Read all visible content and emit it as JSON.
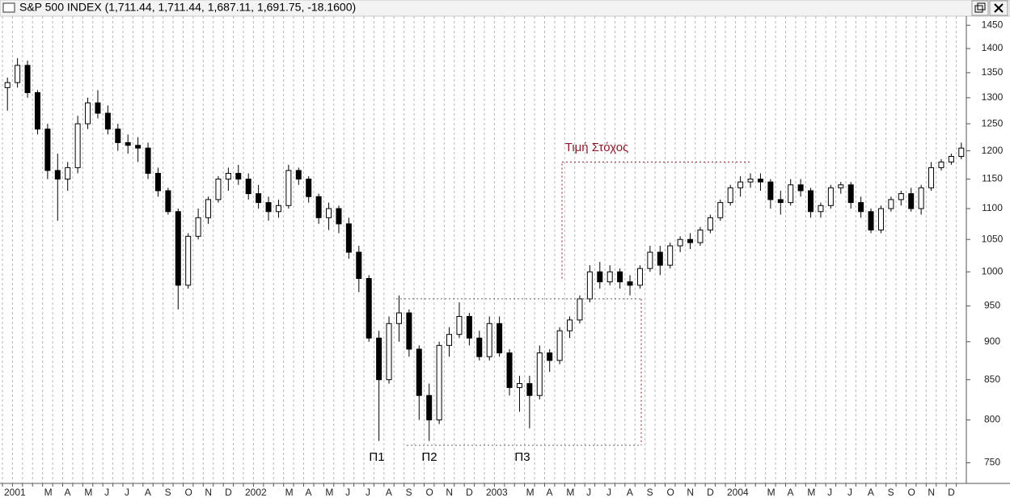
{
  "chart_data": {
    "type": "candlestick",
    "title": "S&P 500 INDEX (1,711.44, 1,711.44, 1,687.11, 1,691.75, -18.1600)",
    "categories": [
      "2001",
      null,
      null,
      null,
      "M",
      null,
      "A",
      null,
      "M",
      null,
      "J",
      null,
      "J",
      null,
      "A",
      null,
      "S",
      null,
      "O",
      null,
      "N",
      null,
      "D",
      null,
      "2002",
      null,
      null,
      null,
      "M",
      null,
      "A",
      null,
      "M",
      null,
      "J",
      null,
      "J",
      null,
      "A",
      null,
      "S",
      null,
      "O",
      null,
      "N",
      null,
      "D",
      null,
      "2003",
      null,
      null,
      null,
      "M",
      null,
      "A",
      null,
      "M",
      null,
      "J",
      null,
      "J",
      null,
      "A",
      null,
      "S",
      null,
      "O",
      null,
      "N",
      null,
      "D",
      null,
      "2004",
      null,
      null,
      null,
      "M",
      null,
      "A",
      null,
      "M",
      null,
      "J",
      null,
      "J",
      null,
      "A",
      null,
      "S",
      null,
      "O",
      null,
      "N",
      null,
      "D",
      null
    ],
    "open": [
      1320,
      1330,
      1365,
      1310,
      1240,
      1165,
      1150,
      1170,
      1250,
      1290,
      1270,
      1240,
      1215,
      1210,
      1205,
      1160,
      1130,
      1095,
      980,
      1055,
      1085,
      1115,
      1150,
      1160,
      1150,
      1125,
      1110,
      1095,
      1105,
      1165,
      1150,
      1120,
      1085,
      1100,
      1075,
      1030,
      990,
      905,
      850,
      925,
      940,
      890,
      830,
      800,
      895,
      910,
      935,
      905,
      880,
      925,
      885,
      840,
      845,
      830,
      885,
      875,
      915,
      930,
      960,
      1000,
      985,
      1000,
      985,
      980,
      1005,
      1030,
      1010,
      1040,
      1050,
      1045,
      1065,
      1085,
      1110,
      1135,
      1145,
      1150,
      1145,
      1115,
      1110,
      1140,
      1130,
      1095,
      1105,
      1135,
      1140,
      1110,
      1095,
      1065,
      1100,
      1115,
      1125,
      1100,
      1135,
      1170,
      1180,
      1190
    ],
    "high": [
      1340,
      1380,
      1375,
      1315,
      1250,
      1195,
      1180,
      1265,
      1300,
      1315,
      1285,
      1250,
      1230,
      1225,
      1215,
      1170,
      1135,
      1100,
      1060,
      1100,
      1120,
      1155,
      1170,
      1175,
      1160,
      1140,
      1120,
      1115,
      1175,
      1170,
      1155,
      1125,
      1110,
      1105,
      1085,
      1040,
      995,
      915,
      935,
      965,
      945,
      895,
      845,
      900,
      920,
      955,
      940,
      915,
      935,
      935,
      890,
      855,
      855,
      895,
      890,
      920,
      935,
      965,
      1010,
      1015,
      1010,
      1005,
      995,
      1010,
      1040,
      1040,
      1045,
      1055,
      1060,
      1070,
      1090,
      1115,
      1140,
      1155,
      1160,
      1160,
      1150,
      1130,
      1150,
      1150,
      1135,
      1110,
      1140,
      1145,
      1145,
      1120,
      1100,
      1105,
      1120,
      1130,
      1135,
      1140,
      1180,
      1185,
      1195,
      1215
    ],
    "low": [
      1275,
      1320,
      1300,
      1230,
      1150,
      1080,
      1130,
      1160,
      1240,
      1260,
      1230,
      1200,
      1195,
      1180,
      1150,
      1120,
      1090,
      945,
      975,
      1050,
      1075,
      1110,
      1130,
      1140,
      1115,
      1100,
      1080,
      1085,
      1100,
      1140,
      1110,
      1075,
      1065,
      1060,
      1020,
      970,
      900,
      775,
      845,
      900,
      880,
      800,
      775,
      795,
      880,
      905,
      895,
      875,
      875,
      880,
      830,
      810,
      790,
      825,
      860,
      870,
      905,
      925,
      955,
      975,
      980,
      975,
      965,
      975,
      1000,
      995,
      1005,
      1030,
      1035,
      1040,
      1060,
      1080,
      1105,
      1120,
      1135,
      1130,
      1100,
      1090,
      1105,
      1120,
      1085,
      1085,
      1100,
      1125,
      1100,
      1085,
      1060,
      1060,
      1095,
      1105,
      1095,
      1090,
      1130,
      1165,
      1175,
      1185
    ],
    "close": [
      1330,
      1365,
      1310,
      1240,
      1165,
      1150,
      1170,
      1250,
      1290,
      1270,
      1240,
      1215,
      1210,
      1205,
      1160,
      1130,
      1095,
      980,
      1055,
      1085,
      1115,
      1150,
      1160,
      1150,
      1125,
      1110,
      1095,
      1105,
      1165,
      1150,
      1120,
      1085,
      1100,
      1075,
      1030,
      990,
      905,
      850,
      925,
      940,
      890,
      830,
      800,
      895,
      910,
      935,
      905,
      880,
      925,
      885,
      840,
      845,
      830,
      885,
      875,
      915,
      930,
      960,
      1000,
      985,
      1000,
      985,
      980,
      1005,
      1030,
      1010,
      1040,
      1050,
      1045,
      1065,
      1085,
      1110,
      1135,
      1145,
      1150,
      1145,
      1115,
      1110,
      1140,
      1130,
      1095,
      1105,
      1135,
      1140,
      1110,
      1095,
      1065,
      1100,
      1115,
      1125,
      1100,
      1135,
      1170,
      1180,
      1190,
      1205
    ],
    "up_color": "#ffffff",
    "down_color": "#000000",
    "log_scale": true,
    "grid": true,
    "ylim": [
      727,
      1470
    ],
    "yticks": [
      750,
      800,
      850,
      900,
      950,
      1000,
      1050,
      1100,
      1150,
      1200,
      1250,
      1300,
      1350,
      1400,
      1450
    ],
    "annotations": [
      "Π1",
      "Π2",
      "Π3",
      "Τιμή Στόχος"
    ],
    "neckline": 960,
    "pattern_low": 770,
    "target_start": 990,
    "target": 1180
  }
}
